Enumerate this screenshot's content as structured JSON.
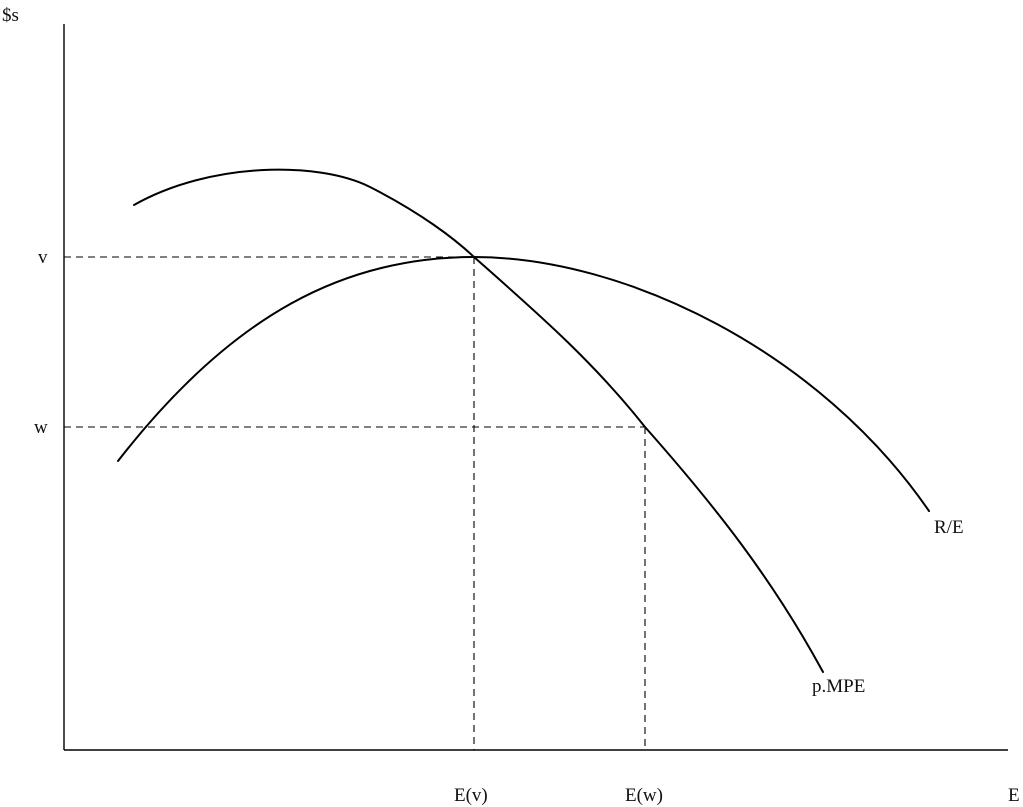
{
  "axes": {
    "y_label": "$s",
    "x_label": "E"
  },
  "levels": {
    "v_label": "v",
    "w_label": "w"
  },
  "ticks": {
    "ev_label": "E(v)",
    "ew_label": "E(w)"
  },
  "curves": {
    "re_label": "R/E",
    "mpe_label": "p.MPE"
  }
}
